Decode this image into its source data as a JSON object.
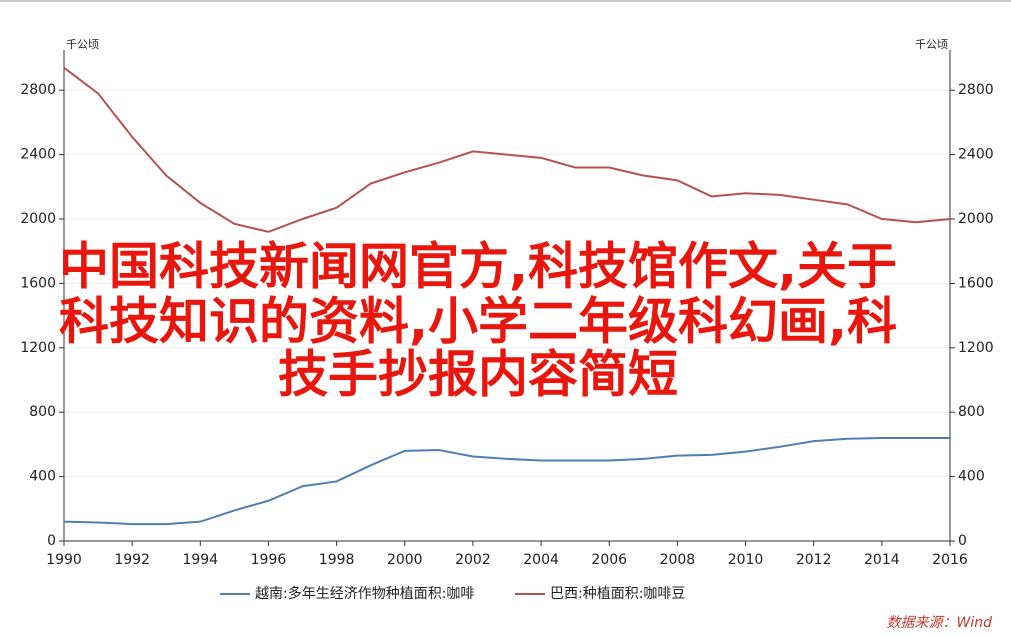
{
  "chart_data": {
    "type": "line",
    "y_label": "千公顷",
    "y2_label": "千公顷",
    "x": [
      1990,
      1991,
      1992,
      1993,
      1994,
      1995,
      1996,
      1997,
      1998,
      1999,
      2000,
      2001,
      2002,
      2003,
      2004,
      2005,
      2006,
      2007,
      2008,
      2009,
      2010,
      2011,
      2012,
      2013,
      2014,
      2015,
      2016
    ],
    "xlim": [
      1990,
      2016
    ],
    "xticks": [
      1990,
      1992,
      1994,
      1996,
      1998,
      2000,
      2002,
      2004,
      2006,
      2008,
      2010,
      2012,
      2014,
      2016
    ],
    "ylim": [
      0,
      3000
    ],
    "yticks": [
      0,
      400,
      800,
      1200,
      1600,
      2000,
      2400,
      2800
    ],
    "y2lim": [
      0,
      3000
    ],
    "y2ticks": [
      0,
      400,
      800,
      1200,
      1600,
      2000,
      2400,
      2800
    ],
    "grid": true,
    "series": [
      {
        "name": "越南:多年生经济作物种植面积:咖啡",
        "color": "#4f7fb0",
        "values": [
          120,
          115,
          105,
          105,
          120,
          190,
          250,
          340,
          370,
          470,
          560,
          565,
          525,
          510,
          500,
          500,
          500,
          510,
          530,
          535,
          555,
          585,
          620,
          635,
          640,
          640,
          640
        ]
      },
      {
        "name": "巴西:种植面积:咖啡豆",
        "color": "#b5524e",
        "values": [
          2940,
          2780,
          2510,
          2270,
          2100,
          1970,
          1920,
          2000,
          2070,
          2220,
          2290,
          2350,
          2420,
          2400,
          2380,
          2320,
          2320,
          2270,
          2240,
          2140,
          2160,
          2150,
          2120,
          2090,
          2000,
          1980,
          2000
        ]
      }
    ],
    "annotation": [
      "中国科技新闻网官方,科技馆作文,关于",
      "科技知识的资料,小学二年级科幻画,科",
      "技手抄报内容简短"
    ],
    "source": "数据来源：Wind"
  }
}
